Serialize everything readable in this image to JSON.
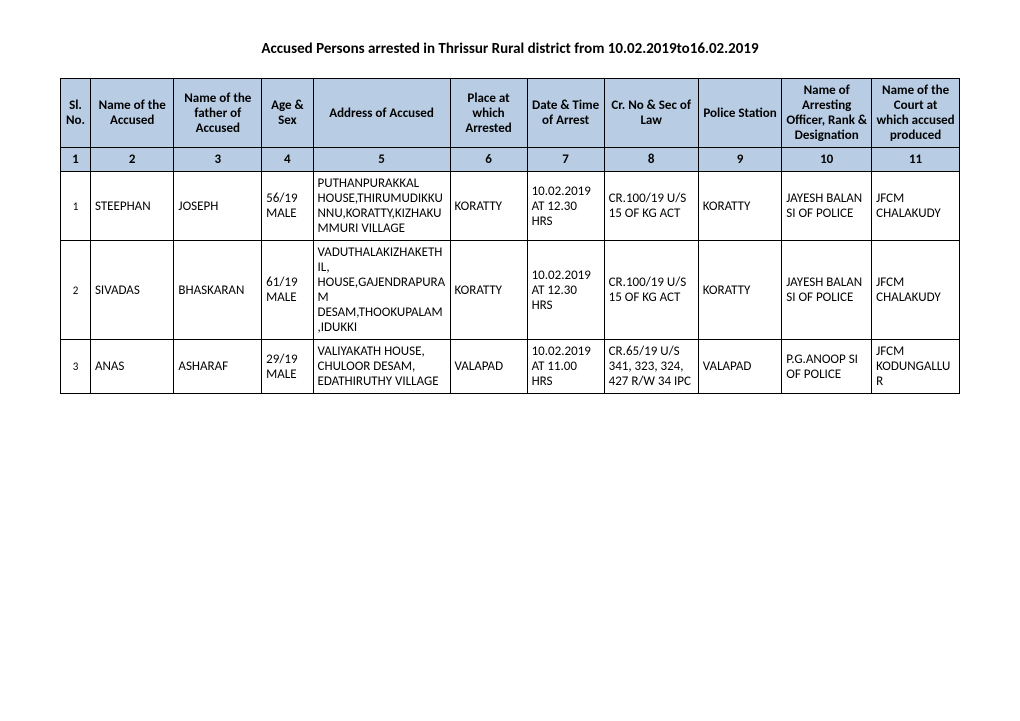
{
  "title": "Accused Persons arrested in   Thrissur Rural  district from  10.02.2019to16.02.2019",
  "headers": {
    "sl": "Sl. No.",
    "name": "Name of the Accused",
    "father": "Name of the father of Accused",
    "agesex": "Age & Sex",
    "address": "Address of Accused",
    "place": "Place at which Arrested",
    "datetime": "Date & Time of Arrest",
    "crno": "Cr. No & Sec of Law",
    "station": "Police Station",
    "officer": "Name of Arresting Officer, Rank & Designation",
    "court": "Name of the Court at which accused produced"
  },
  "colnums": [
    "1",
    "2",
    "3",
    "4",
    "5",
    "6",
    "7",
    "8",
    "9",
    "10",
    "11"
  ],
  "rows": [
    {
      "sl": "1",
      "name": "STEEPHAN",
      "father": "JOSEPH",
      "agesex": "56/19 MALE",
      "address": "PUTHANPURAKKAL HOUSE,THIRUMUDIKKUNNU,KORATTY,KIZHAKUMMURI VILLAGE",
      "place": "KORATTY",
      "datetime": "10.02.2019 AT 12.30 HRS",
      "crno": "CR.100/19 U/S 15 OF KG ACT",
      "station": "KORATTY",
      "officer": "JAYESH BALAN SI OF POLICE",
      "court": "JFCM CHALAKUDY"
    },
    {
      "sl": "2",
      "name": "SIVADAS",
      "father": "BHASKARAN",
      "agesex": "61/19 MALE",
      "address": "VADUTHALAKIZHAKETHIL, HOUSE,GAJENDRAPURAM DESAM,THOOKUPALAM,IDUKKI",
      "place": "KORATTY",
      "datetime": "10.02.2019 AT 12.30 HRS",
      "crno": "CR.100/19 U/S 15 OF KG ACT",
      "station": "KORATTY",
      "officer": "JAYESH BALAN SI OF POLICE",
      "court": "JFCM CHALAKUDY"
    },
    {
      "sl": "3",
      "name": "ANAS",
      "father": "ASHARAF",
      "agesex": "29/19 MALE",
      "address": "VALIYAKATH HOUSE, CHULOOR DESAM, EDATHIRUTHY VILLAGE",
      "place": "VALAPAD",
      "datetime": "10.02.2019 AT 11.00 HRS",
      "crno": "CR.65/19 U/S 341, 323, 324, 427 R/W 34 IPC",
      "station": "VALAPAD",
      "officer": "P.G.ANOOP SI OF POLICE",
      "court": "JFCM KODUNGALLUR"
    }
  ]
}
